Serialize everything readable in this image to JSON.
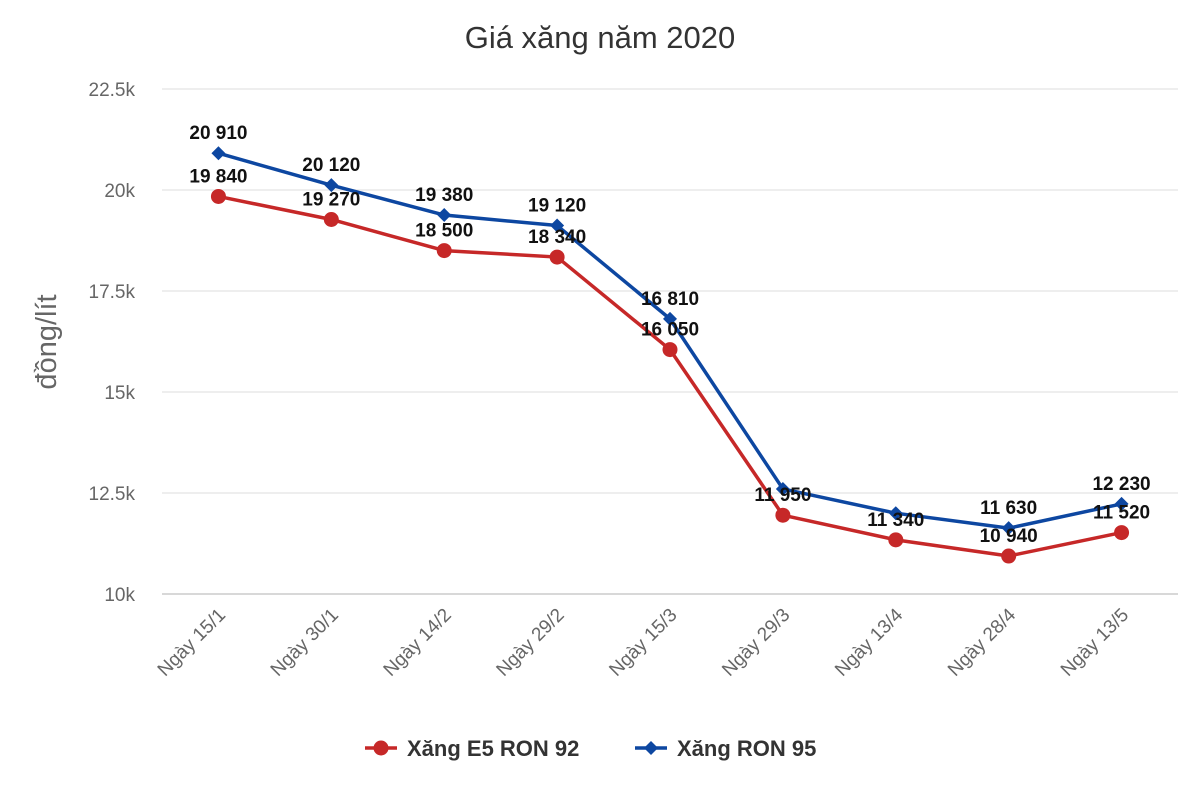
{
  "chart_data": {
    "type": "line",
    "title": "Giá xăng năm 2020",
    "xlabel": "",
    "ylabel": "đồng/lít",
    "ylim": [
      10000,
      22500
    ],
    "yticks": [
      10000,
      12500,
      15000,
      17500,
      20000,
      22500
    ],
    "ytick_labels": [
      "10k",
      "12.5k",
      "15k",
      "17.5k",
      "20k",
      "22.5k"
    ],
    "grid": true,
    "legend_position": "bottom",
    "categories": [
      "Ngày 15/1",
      "Ngày 30/1",
      "Ngày 14/2",
      "Ngày 29/2",
      "Ngày 15/3",
      "Ngày 29/3",
      "Ngày 13/4",
      "Ngày 28/4",
      "Ngày 13/5"
    ],
    "series": [
      {
        "name": "Xăng E5 RON 92",
        "color": "#c62828",
        "marker": "circle",
        "values": [
          19840,
          19270,
          18500,
          18340,
          16050,
          11950,
          11340,
          10940,
          11520
        ],
        "labels": [
          "19 840",
          "19 270",
          "18 500",
          "18 340",
          "16 050",
          "11 950",
          "11 340",
          "10 940",
          "11 520"
        ]
      },
      {
        "name": "Xăng RON 95",
        "color": "#0d47a1",
        "marker": "diamond",
        "values": [
          20910,
          20120,
          19380,
          19120,
          16810,
          12600,
          12000,
          11630,
          12230
        ],
        "labels": [
          "20 910",
          "20 120",
          "19 380",
          "19 120",
          "16 810",
          null,
          null,
          "11 630",
          "12 230"
        ]
      }
    ]
  }
}
